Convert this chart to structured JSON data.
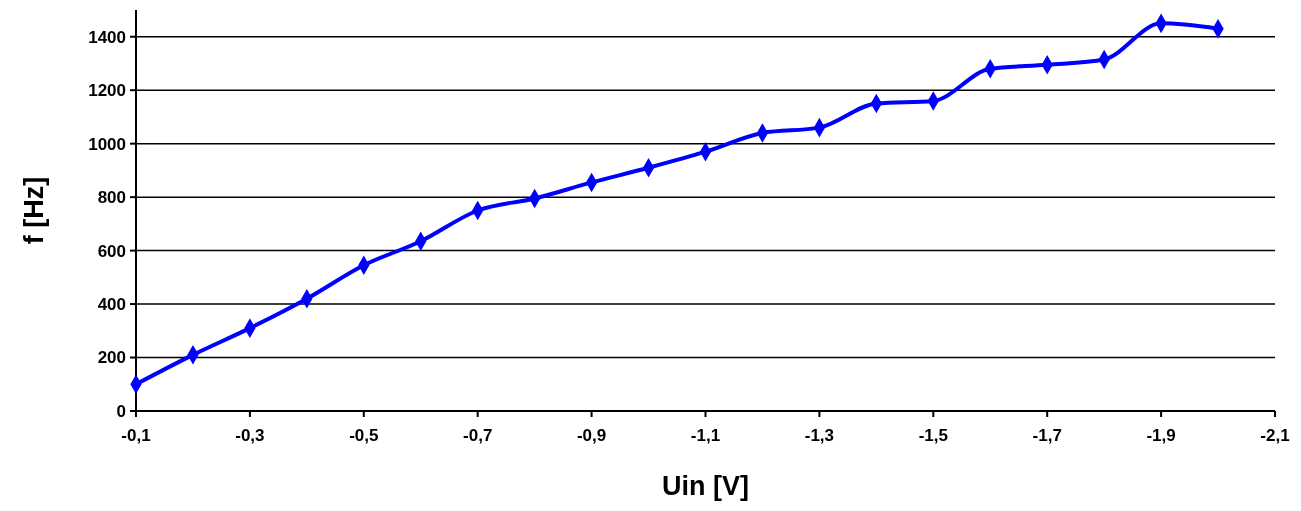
{
  "chart_data": {
    "type": "line",
    "xlabel": "Uin [V]",
    "ylabel": "f [Hz]",
    "x": [
      -0.1,
      -0.2,
      -0.3,
      -0.4,
      -0.5,
      -0.6,
      -0.7,
      -0.8,
      -0.9,
      -1.0,
      -1.1,
      -1.2,
      -1.3,
      -1.4,
      -1.5,
      -1.6,
      -1.7,
      -1.8,
      -1.9,
      -2.0
    ],
    "series": [
      {
        "color": "#0000ff",
        "values": [
          100,
          210,
          310,
          420,
          545,
          635,
          750,
          795,
          855,
          910,
          970,
          1040,
          1060,
          1150,
          1160,
          1280,
          1295,
          1315,
          1450,
          1430
        ]
      }
    ],
    "xlim": [
      -0.1,
      -2.1
    ],
    "xticks": [
      {
        "value": -0.1,
        "label": "-0,1"
      },
      {
        "value": -0.3,
        "label": "-0,3"
      },
      {
        "value": -0.5,
        "label": "-0,5"
      },
      {
        "value": -0.7,
        "label": "-0,7"
      },
      {
        "value": -0.9,
        "label": "-0,9"
      },
      {
        "value": -1.1,
        "label": "-1,1"
      },
      {
        "value": -1.3,
        "label": "-1,3"
      },
      {
        "value": -1.5,
        "label": "-1,5"
      },
      {
        "value": -1.7,
        "label": "-1,7"
      },
      {
        "value": -1.9,
        "label": "-1,9"
      },
      {
        "value": -2.1,
        "label": "-2,1"
      }
    ],
    "ylim": [
      0,
      1500
    ],
    "yticks": [
      0,
      200,
      400,
      600,
      800,
      1000,
      1200,
      1400
    ],
    "grid": "y",
    "marker": "diamond",
    "line_style": "solid"
  }
}
